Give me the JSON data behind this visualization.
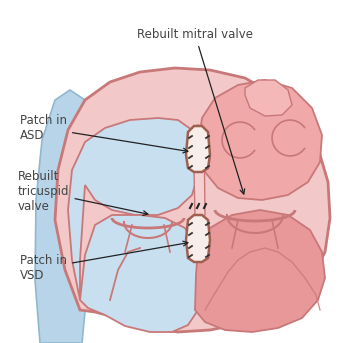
{
  "bg_color": "#ffffff",
  "heart_outer_color": "#f2c8c8",
  "heart_outer_edge": "#c87878",
  "right_chamber_fill": "#c8dff0",
  "left_atrium_fill": "#f0a8a8",
  "left_ventricle_fill": "#e89898",
  "valve_edge": "#c87878",
  "label_color": "#444444",
  "line_color": "#222222",
  "labels": {
    "rebuilt_mitral": "Rebuilt mitral valve",
    "patch_asd": "Patch in\nASD",
    "rebuilt_tricuspid": "Rebuilt\ntricuspid\nvalve",
    "patch_vsd": "Patch in\nVSD"
  }
}
